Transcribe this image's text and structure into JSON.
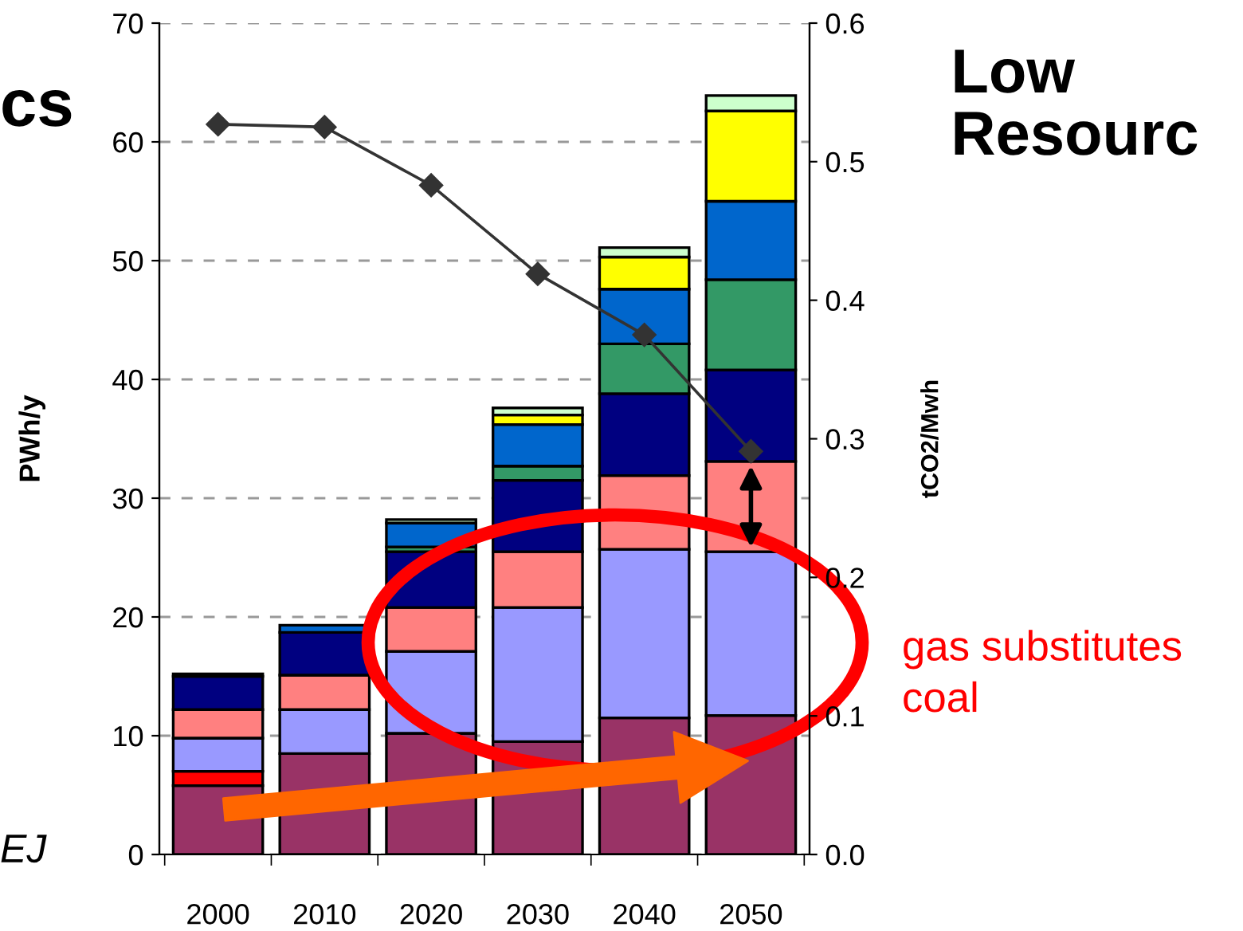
{
  "chart_data": {
    "type": "bar",
    "stacked": true,
    "ylabel": "PWh/y",
    "y2label": "tCO2/Mwh",
    "categories": [
      "2000",
      "2010",
      "2020",
      "2030",
      "2040",
      "2050"
    ],
    "series": [
      {
        "color": "#993366",
        "values": [
          5.8,
          8.5,
          10.2,
          9.5,
          11.5,
          11.7
        ]
      },
      {
        "color": "#ff0000",
        "values": [
          1.2,
          0,
          0,
          0,
          0,
          0
        ]
      },
      {
        "color": "#9999ff",
        "values": [
          2.8,
          3.7,
          6.9,
          11.3,
          14.2,
          13.8
        ]
      },
      {
        "color": "#ff8080",
        "values": [
          2.4,
          2.9,
          3.7,
          4.7,
          6.2,
          7.6
        ]
      },
      {
        "color": "#000080",
        "values": [
          2.8,
          3.6,
          4.7,
          6.0,
          6.9,
          7.7
        ]
      },
      {
        "color": "#339966",
        "values": [
          0,
          0,
          0.4,
          1.2,
          4.2,
          7.6
        ]
      },
      {
        "color": "#0066cc",
        "values": [
          0.2,
          0.6,
          2.0,
          3.5,
          4.6,
          6.6
        ]
      },
      {
        "color": "#ffff00",
        "values": [
          0,
          0,
          0,
          0.8,
          2.7,
          7.6
        ]
      },
      {
        "color": "#ccffcc",
        "values": [
          0,
          0,
          0.3,
          0.6,
          0.8,
          1.3
        ]
      },
      {
        "type": "line",
        "axis": "y2",
        "color": "#333333",
        "marker": "diamond",
        "values": [
          0.527,
          0.525,
          0.483,
          0.419,
          0.375,
          0.291
        ]
      }
    ],
    "ylim": [
      0,
      70
    ],
    "yticks": [
      0,
      10,
      20,
      30,
      40,
      50,
      60,
      70
    ],
    "y2lim": [
      0,
      0.6
    ],
    "y2ticks": [
      {
        "value": 0,
        "label": "0.0"
      },
      0.1,
      0.2,
      0.3,
      0.4,
      0.5,
      0.6
    ],
    "grid": "y",
    "annotations": [
      "cs",
      "Low\nResourc",
      "EJ",
      "gas substitutes\ncoal"
    ]
  }
}
